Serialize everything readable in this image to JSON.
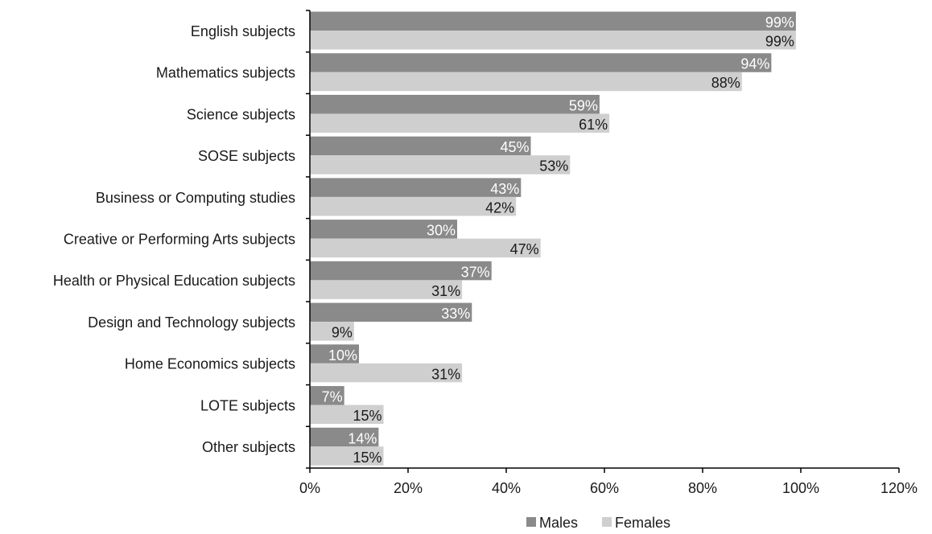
{
  "chart_data": {
    "type": "bar",
    "orientation": "horizontal",
    "title": "",
    "xlabel": "",
    "ylabel": "",
    "xlim": [
      0,
      120
    ],
    "x_ticks": [
      "0%",
      "20%",
      "40%",
      "60%",
      "80%",
      "100%",
      "120%"
    ],
    "grid": false,
    "legend_position": "bottom",
    "categories": [
      "English subjects",
      "Mathematics subjects",
      "Science subjects",
      "SOSE subjects",
      "Business or Computing studies",
      "Creative or Performing Arts subjects",
      "Health or Physical Education subjects",
      "Design and Technology subjects",
      "Home Economics subjects",
      "LOTE subjects",
      "Other subjects"
    ],
    "series": [
      {
        "name": "Males",
        "color": "#8a8a8a",
        "label_color": "#ffffff",
        "values": [
          99,
          94,
          59,
          45,
          43,
          30,
          37,
          33,
          10,
          7,
          14
        ],
        "labels": [
          "99%",
          "94%",
          "59%",
          "45%",
          "43%",
          "30%",
          "37%",
          "33%",
          "10%",
          "7%",
          "14%"
        ]
      },
      {
        "name": "Females",
        "color": "#cfcfcf",
        "label_color": "#1a1a1a",
        "values": [
          99,
          88,
          61,
          53,
          42,
          47,
          31,
          9,
          31,
          15,
          15
        ],
        "labels": [
          "99%",
          "88%",
          "61%",
          "53%",
          "42%",
          "47%",
          "31%",
          "9%",
          "31%",
          "15%",
          "15%"
        ]
      }
    ]
  }
}
